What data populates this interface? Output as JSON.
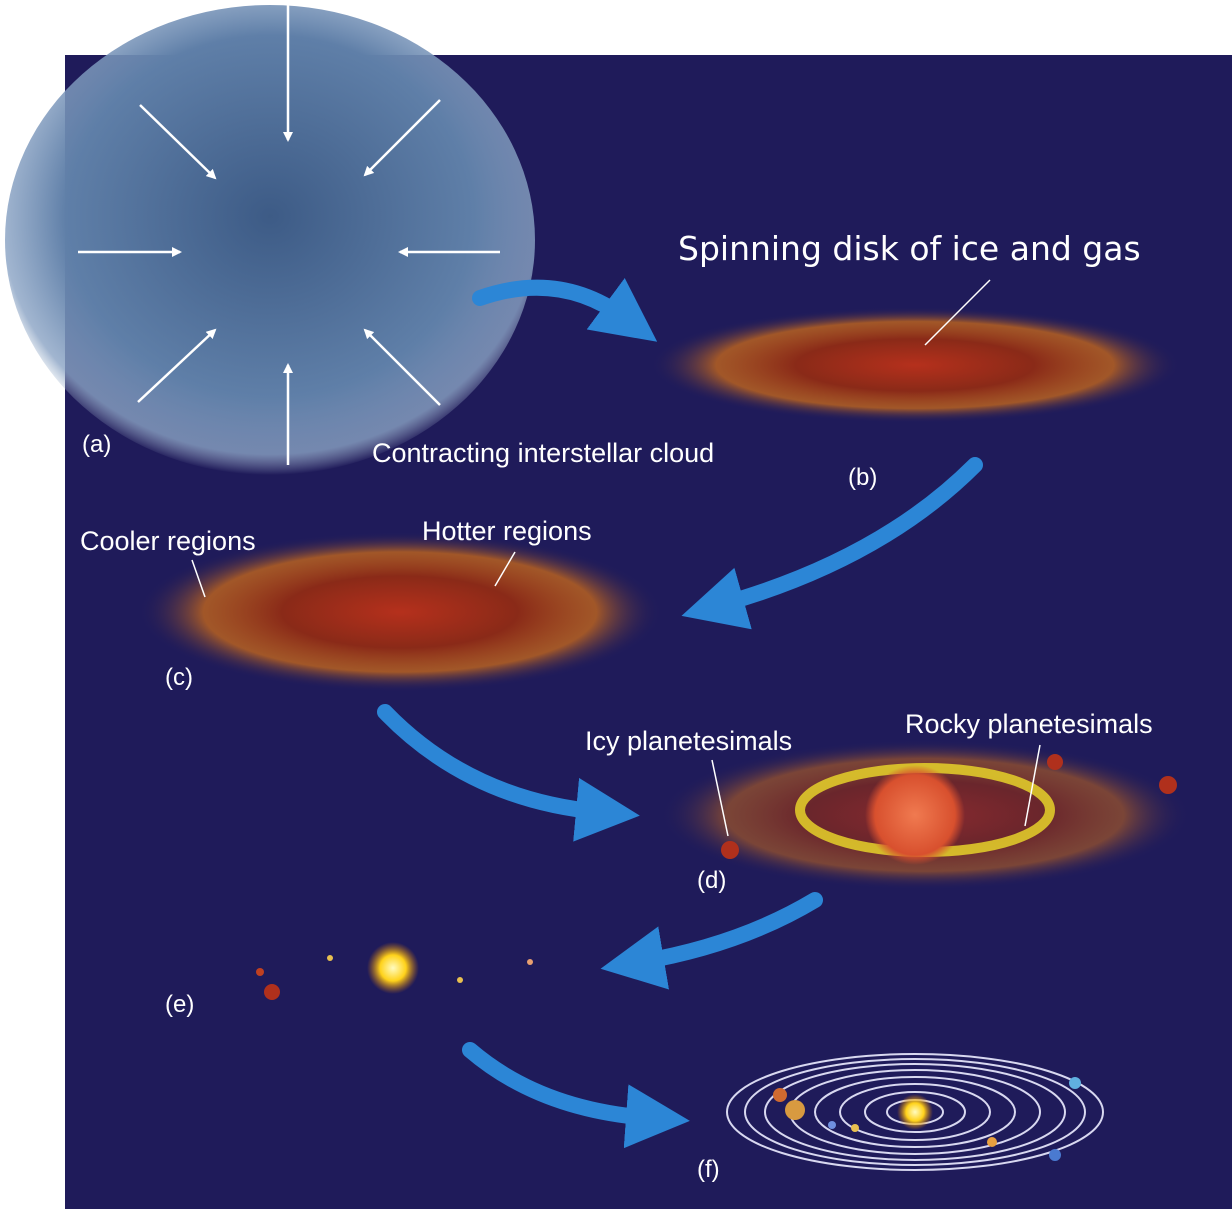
{
  "stages": [
    {
      "label": "(a)",
      "caption": "Contracting interstellar cloud"
    },
    {
      "label": "(b)",
      "caption": "Spinning disk of ice and gas"
    },
    {
      "label": "(c)",
      "annotations": [
        "Cooler regions",
        "Hotter regions"
      ]
    },
    {
      "label": "(d)",
      "annotations": [
        "Icy planetesimals",
        "Rocky planetesimals"
      ]
    },
    {
      "label": "(e)"
    },
    {
      "label": "(f)"
    }
  ]
}
